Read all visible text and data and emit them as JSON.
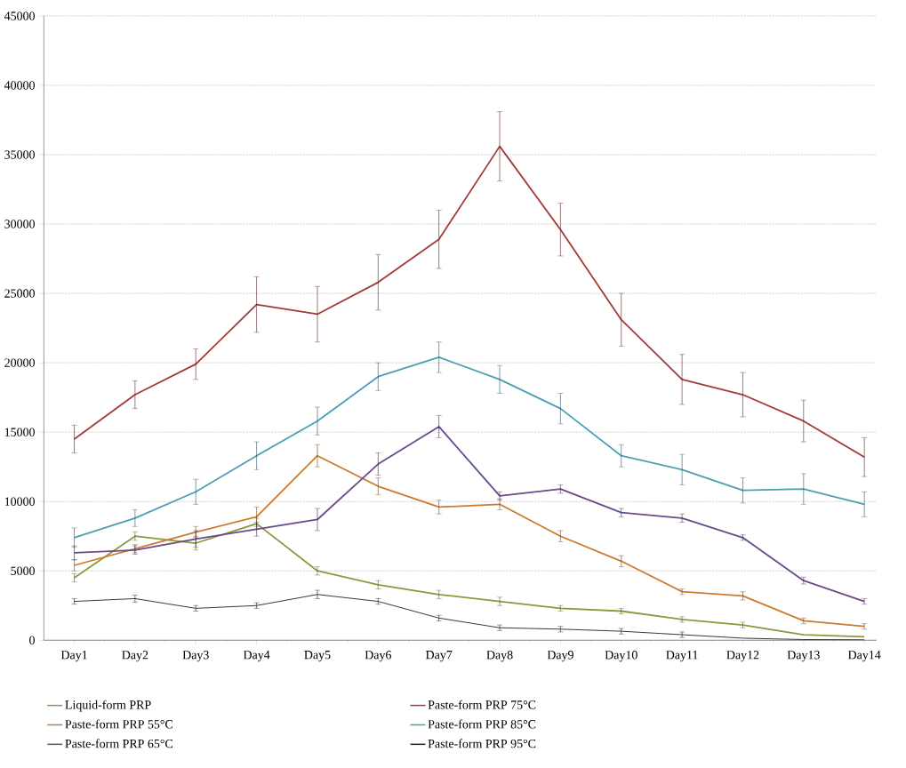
{
  "chart_data": {
    "type": "line",
    "categories": [
      "Day1",
      "Day2",
      "Day3",
      "Day4",
      "Day5",
      "Day6",
      "Day7",
      "Day8",
      "Day9",
      "Day10",
      "Day11",
      "Day12",
      "Day13",
      "Day14"
    ],
    "series": [
      {
        "name": "Liquid-form PRP",
        "color": "#8a9a3b",
        "values": [
          4500,
          7500,
          7000,
          8400,
          5000,
          4000,
          3300,
          2800,
          2300,
          2100,
          1500,
          1100,
          400,
          250
        ],
        "errors": [
          300,
          300,
          500,
          400,
          300,
          300,
          300,
          300,
          200,
          200,
          200,
          200,
          null,
          null
        ]
      },
      {
        "name": "Paste-form PRP 75°C",
        "color": "#a33a3a",
        "values": [
          14500,
          17700,
          19900,
          24200,
          23500,
          25800,
          28900,
          35600,
          29600,
          23100,
          18800,
          17700,
          15800,
          13200
        ],
        "errors": [
          1000,
          1000,
          1100,
          2000,
          2000,
          2000,
          2100,
          2500,
          1900,
          1900,
          1800,
          1600,
          1500,
          1400
        ]
      },
      {
        "name": "Paste-form PRP 55°C",
        "color": "#cc7a2e",
        "values": [
          5400,
          6600,
          7800,
          8900,
          13300,
          11100,
          9600,
          9800,
          7500,
          5700,
          3500,
          3200,
          1400,
          1000
        ],
        "errors": [
          400,
          300,
          400,
          700,
          800,
          600,
          500,
          400,
          400,
          400,
          200,
          300,
          200,
          200
        ]
      },
      {
        "name": "Paste-form PRP 85°C",
        "color": "#4a9fb5",
        "values": [
          7400,
          8800,
          10700,
          13300,
          15800,
          19000,
          20400,
          18800,
          16700,
          13300,
          12300,
          10800,
          10900,
          9800
        ],
        "errors": [
          700,
          600,
          900,
          1000,
          1000,
          1000,
          1100,
          1000,
          1100,
          800,
          1100,
          900,
          1100,
          900
        ]
      },
      {
        "name": "Paste-form PRP 65°C",
        "color": "#6a4a8a",
        "values": [
          6300,
          6500,
          7300,
          8000,
          8700,
          12700,
          15400,
          10400,
          10900,
          9200,
          8800,
          7400,
          4300,
          2800
        ],
        "errors": [
          500,
          300,
          600,
          500,
          800,
          800,
          800,
          300,
          300,
          300,
          300,
          200,
          250,
          200
        ]
      },
      {
        "name": "Paste-form PRP 95°C",
        "color": "#222222",
        "values": [
          2800,
          3000,
          2300,
          2500,
          3300,
          2800,
          1600,
          900,
          800,
          650,
          400,
          150,
          50,
          30
        ],
        "errors": [
          200,
          250,
          200,
          200,
          300,
          200,
          200,
          200,
          200,
          200,
          200,
          null,
          null,
          null
        ]
      }
    ],
    "ylim": [
      0,
      45000
    ],
    "yticks": [
      0,
      5000,
      10000,
      15000,
      20000,
      25000,
      30000,
      35000,
      40000,
      45000
    ],
    "grid": "y",
    "legend": "bottom"
  }
}
